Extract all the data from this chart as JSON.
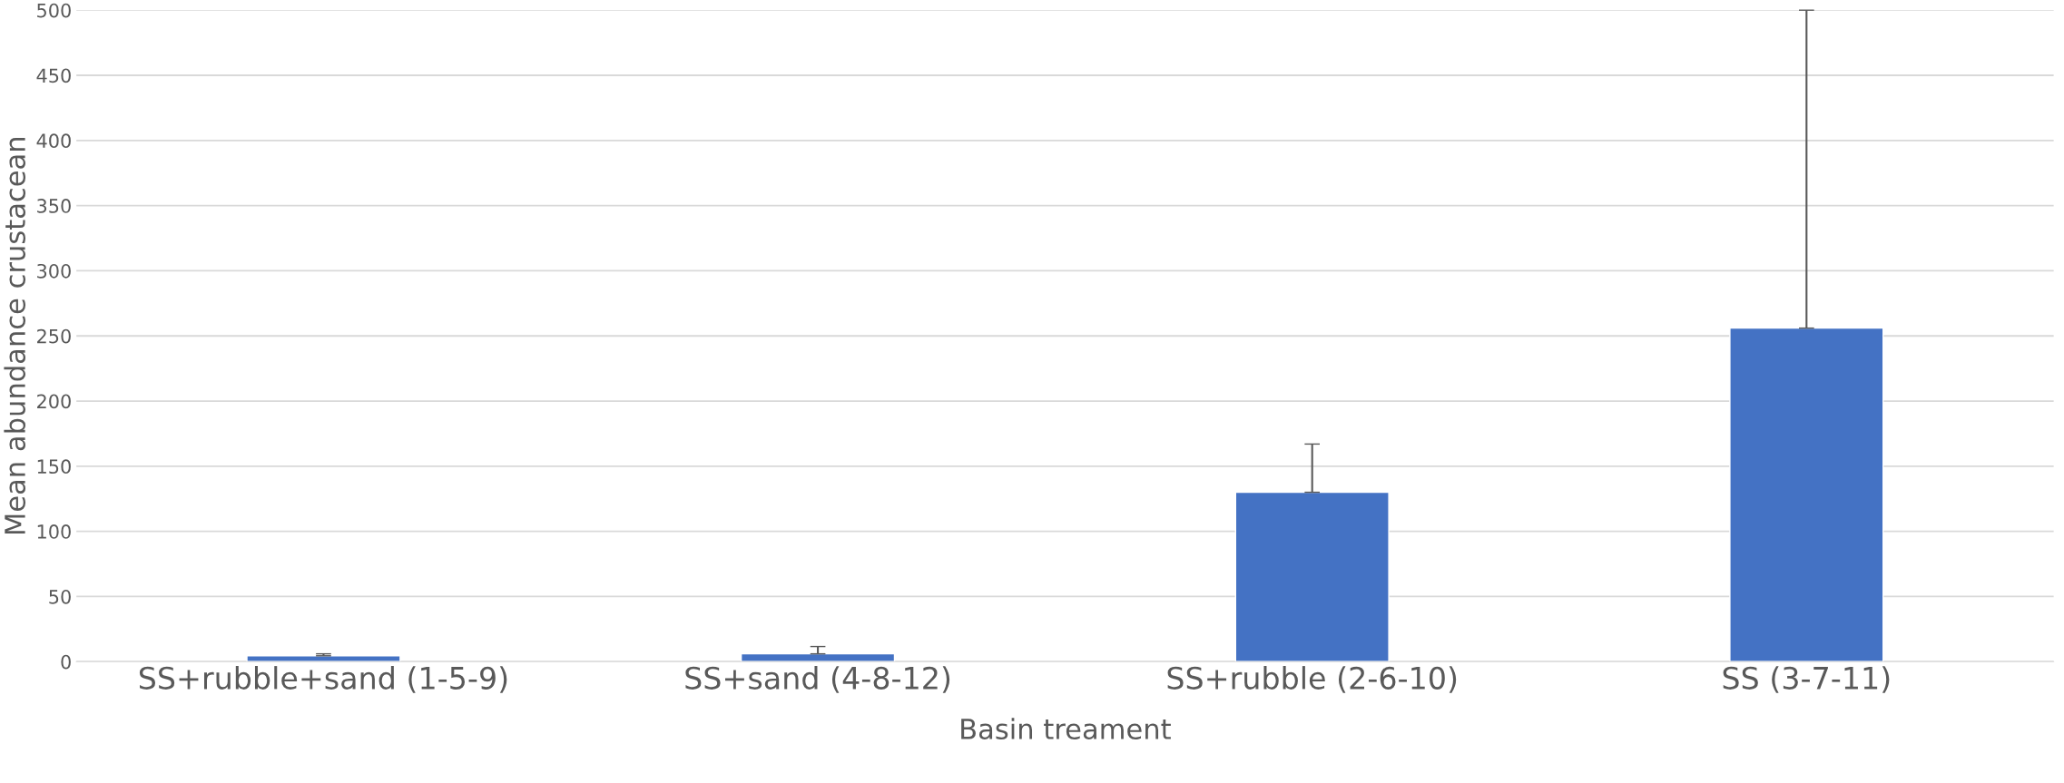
{
  "chart_data": {
    "type": "bar",
    "xlabel": "Basin treament",
    "ylabel": "Mean abundance crustacean",
    "categories": [
      "SS+rubble+sand (1-5-9)",
      "SS+sand (4-8-12)",
      "SS+rubble (2-6-10)",
      "SS (3-7-11)"
    ],
    "values": [
      4.5,
      6,
      130,
      256
    ],
    "errors": [
      [
        4.5,
        6
      ],
      [
        6,
        11.6
      ],
      [
        130,
        167
      ],
      [
        256,
        500
      ]
    ],
    "color": "#4472c4",
    "ylim": [
      0,
      500
    ],
    "yticks": [
      0,
      50,
      100,
      150,
      200,
      250,
      300,
      350,
      400,
      450,
      500
    ],
    "grid": "y",
    "legend": false
  }
}
